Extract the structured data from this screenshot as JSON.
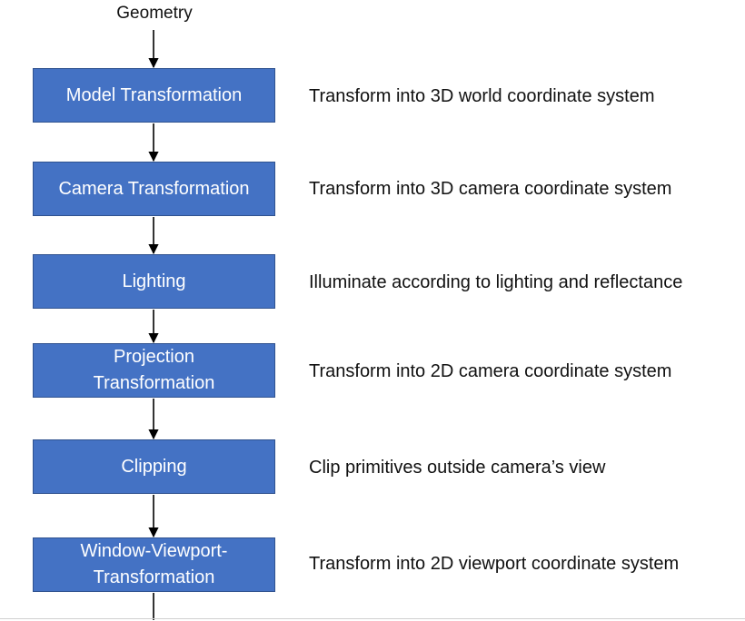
{
  "input_label": "Geometry",
  "colors": {
    "box_fill": "#4472c4",
    "box_border": "#2f528f",
    "box_text": "#ffffff",
    "text": "#111111",
    "arrow": "#000000"
  },
  "stages": [
    {
      "label": "Model Transformation",
      "description": "Transform into 3D world coordinate system"
    },
    {
      "label": "Camera Transformation",
      "description": "Transform into 3D camera coordinate system"
    },
    {
      "label": "Lighting",
      "description": "Illuminate according to lighting and reflectance"
    },
    {
      "label": "Projection Transformation",
      "description": "Transform into 2D camera coordinate system"
    },
    {
      "label": "Clipping",
      "description": "Clip primitives outside camera’s view"
    },
    {
      "label": "Window-Viewport-Transformation",
      "description": "Transform into 2D viewport coordinate system"
    }
  ]
}
